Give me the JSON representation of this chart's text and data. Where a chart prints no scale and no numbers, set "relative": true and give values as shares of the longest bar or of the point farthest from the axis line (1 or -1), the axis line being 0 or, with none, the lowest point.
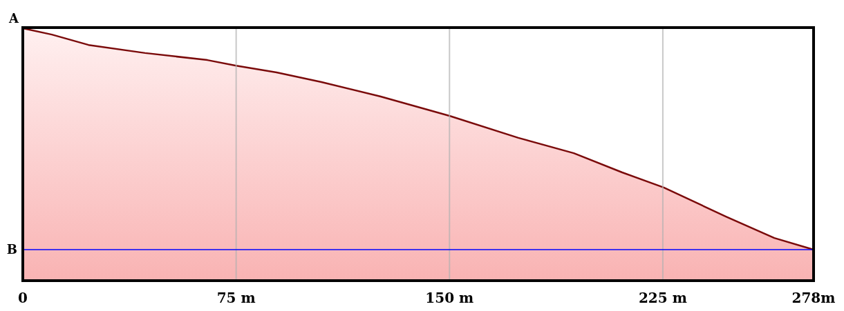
{
  "chart_data": {
    "type": "area",
    "relative": true,
    "x": [
      0,
      10.2,
      23.1,
      43,
      64.9,
      75,
      89.2,
      105,
      125.6,
      150,
      174.2,
      193.7,
      210.7,
      225.3,
      247.2,
      264.2,
      278
    ],
    "series": [
      {
        "color": "#7a0a0a",
        "values": [
          1.0,
          0.975,
          0.934,
          0.902,
          0.874,
          0.852,
          0.825,
          0.787,
          0.73,
          0.653,
          0.566,
          0.505,
          0.429,
          0.369,
          0.254,
          0.169,
          0.123
        ]
      }
    ],
    "xlim": [
      0,
      278
    ],
    "xticks": [
      0,
      {
        "value": 75,
        "label": "75 m"
      },
      {
        "value": 150,
        "label": "150 m"
      },
      {
        "value": 225,
        "label": "225 m"
      },
      {
        "value": 278,
        "label": "278m"
      }
    ],
    "grid": "x",
    "tick_labels": "x",
    "ref_lines": [
      {
        "axis": "y",
        "value": 0.123,
        "label": "B",
        "color": "#0000ff"
      }
    ],
    "annotations": [
      {
        "text": "A",
        "x": 0,
        "y": 1.0
      }
    ]
  }
}
